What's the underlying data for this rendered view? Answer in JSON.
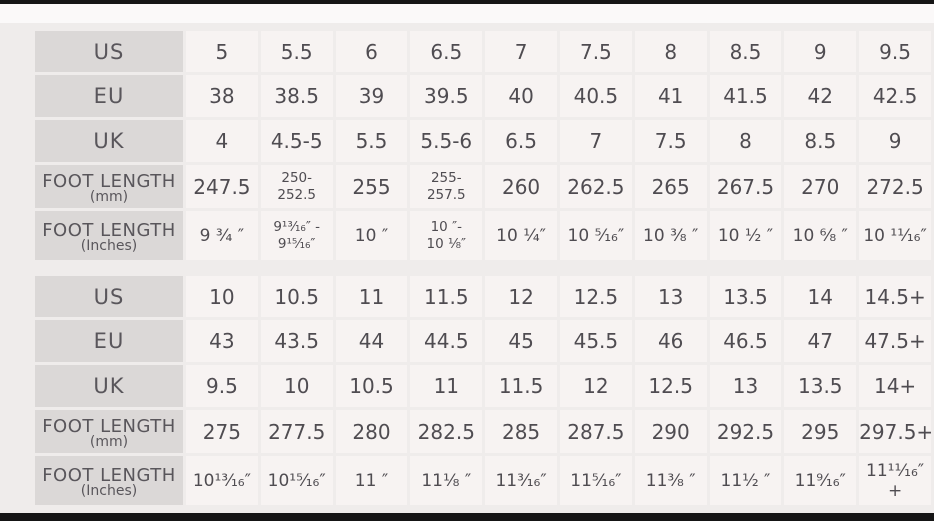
{
  "page": {
    "background_color": "#efeceb",
    "bar_color": "#151515",
    "cell_color": "#f7f3f2",
    "row_header_color": "#dbd8d7",
    "text_color": "#4f4c51"
  },
  "chart_data": [
    {
      "type": "table",
      "rows": [
        {
          "label": "US",
          "sub": "",
          "values": [
            "5",
            "5.5",
            "6",
            "6.5",
            "7",
            "7.5",
            "8",
            "8.5",
            "9",
            "9.5"
          ]
        },
        {
          "label": "EU",
          "sub": "",
          "values": [
            "38",
            "38.5",
            "39",
            "39.5",
            "40",
            "40.5",
            "41",
            "41.5",
            "42",
            "42.5"
          ]
        },
        {
          "label": "UK",
          "sub": "",
          "values": [
            "4",
            "4.5-5",
            "5.5",
            "5.5-6",
            "6.5",
            "7",
            "7.5",
            "8",
            "8.5",
            "9"
          ]
        },
        {
          "label": "FOOT LENGTH",
          "sub": "(mm)",
          "values": [
            "247.5",
            "250-\n252.5",
            "255",
            "255-\n257.5",
            "260",
            "262.5",
            "265",
            "267.5",
            "270",
            "272.5"
          ]
        },
        {
          "label": "FOOT LENGTH",
          "sub": "(Inches)",
          "values": [
            "9 ³⁄₄ ″",
            "9¹³⁄₁₆″ -\n9¹⁵⁄₁₆″",
            "10 ″",
            "10 ″-\n10 ¹⁄₈″",
            "10 ¹⁄₄″",
            "10 ⁵⁄₁₆″",
            "10 ³⁄₈ ″",
            "10 ¹⁄₂ ″",
            "10 ⁶⁄₈ ″",
            "10 ¹¹⁄₁₆″"
          ]
        }
      ]
    },
    {
      "type": "table",
      "rows": [
        {
          "label": "US",
          "sub": "",
          "values": [
            "10",
            "10.5",
            "11",
            "11.5",
            "12",
            "12.5",
            "13",
            "13.5",
            "14",
            "14.5+"
          ]
        },
        {
          "label": "EU",
          "sub": "",
          "values": [
            "43",
            "43.5",
            "44",
            "44.5",
            "45",
            "45.5",
            "46",
            "46.5",
            "47",
            "47.5+"
          ]
        },
        {
          "label": "UK",
          "sub": "",
          "values": [
            "9.5",
            "10",
            "10.5",
            "11",
            "11.5",
            "12",
            "12.5",
            "13",
            "13.5",
            "14+"
          ]
        },
        {
          "label": "FOOT LENGTH",
          "sub": "(mm)",
          "values": [
            "275",
            "277.5",
            "280",
            "282.5",
            "285",
            "287.5",
            "290",
            "292.5",
            "295",
            "297.5+"
          ]
        },
        {
          "label": "FOOT LENGTH",
          "sub": "(Inches)",
          "values": [
            "10¹³⁄₁₆″",
            "10¹⁵⁄₁₆″",
            "11 ″",
            "11¹⁄₈ ″",
            "11³⁄₁₆″",
            "11⁵⁄₁₆″",
            "11³⁄₈ ″",
            "11¹⁄₂ ″",
            "11⁹⁄₁₆″",
            "11¹¹⁄₁₆″+"
          ]
        }
      ]
    }
  ]
}
